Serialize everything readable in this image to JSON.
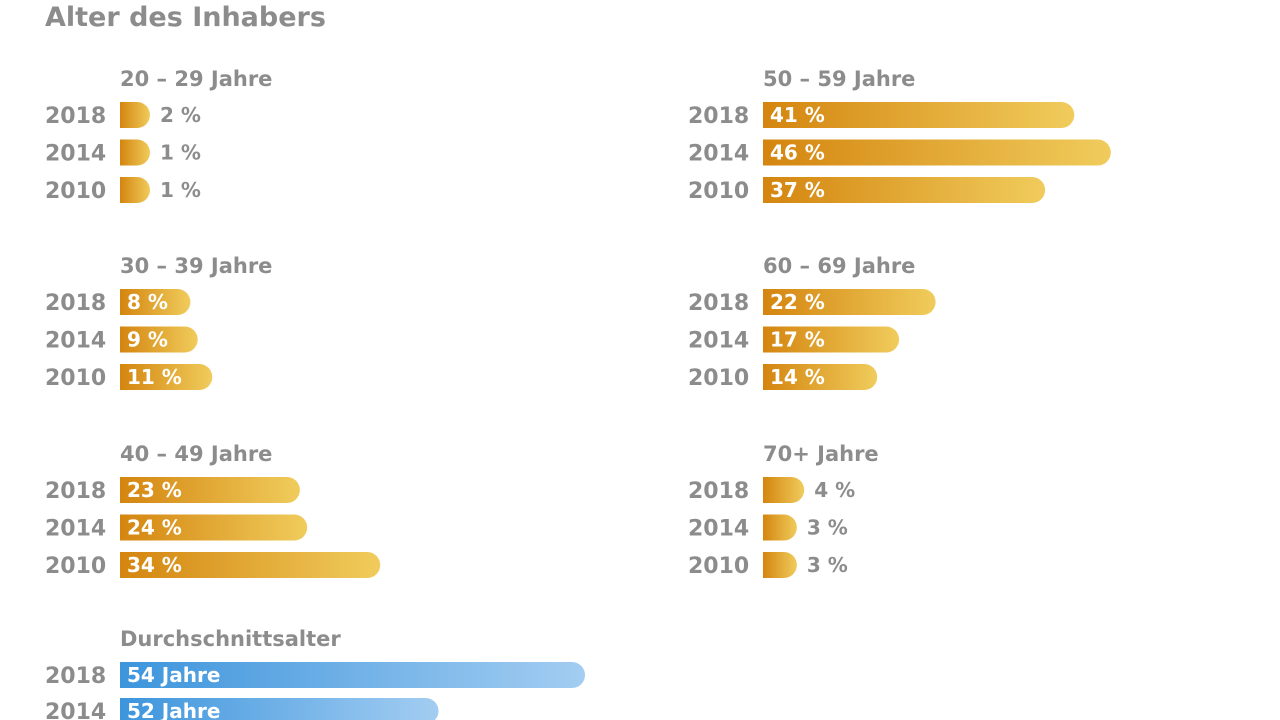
{
  "chart_data": [
    {
      "type": "bar",
      "orientation": "horizontal",
      "title": "Alter des Inhabers",
      "value_unit": "%",
      "groups": [
        {
          "label": "20 – 29 Jahre",
          "rows": [
            {
              "year": "2018",
              "value": 2,
              "label": "2 %"
            },
            {
              "year": "2014",
              "value": 1,
              "label": "1 %"
            },
            {
              "year": "2010",
              "value": 1,
              "label": "1 %"
            }
          ]
        },
        {
          "label": "30 – 39 Jahre",
          "rows": [
            {
              "year": "2018",
              "value": 8,
              "label": "8 %"
            },
            {
              "year": "2014",
              "value": 9,
              "label": "9 %"
            },
            {
              "year": "2010",
              "value": 11,
              "label": "11 %"
            }
          ]
        },
        {
          "label": "40 – 49 Jahre",
          "rows": [
            {
              "year": "2018",
              "value": 23,
              "label": "23 %"
            },
            {
              "year": "2014",
              "value": 24,
              "label": "24 %"
            },
            {
              "year": "2010",
              "value": 34,
              "label": "34 %"
            }
          ]
        },
        {
          "label": "50 – 59 Jahre",
          "rows": [
            {
              "year": "2018",
              "value": 41,
              "label": "41 %"
            },
            {
              "year": "2014",
              "value": 46,
              "label": "46 %"
            },
            {
              "year": "2010",
              "value": 37,
              "label": "37 %"
            }
          ]
        },
        {
          "label": "60 – 69 Jahre",
          "rows": [
            {
              "year": "2018",
              "value": 22,
              "label": "22 %"
            },
            {
              "year": "2014",
              "value": 17,
              "label": "17 %"
            },
            {
              "year": "2010",
              "value": 14,
              "label": "14 %"
            }
          ]
        },
        {
          "label": "70+ Jahre",
          "rows": [
            {
              "year": "2018",
              "value": 4,
              "label": "4 %"
            },
            {
              "year": "2014",
              "value": 3,
              "label": "3 %"
            },
            {
              "year": "2010",
              "value": 3,
              "label": "3 %"
            }
          ]
        }
      ],
      "colors": {
        "bar_start": "#d4850f",
        "bar_end": "#f0cc5c"
      }
    },
    {
      "type": "bar",
      "orientation": "horizontal",
      "title": "Durchschnittsalter",
      "rows": [
        {
          "year": "2018",
          "value": 54,
          "label": "54 Jahre"
        },
        {
          "year": "2014",
          "value": 52,
          "label": "52 Jahre"
        }
      ],
      "colors": {
        "bar_start": "#3d95dc",
        "bar_end": "#a3cdf2"
      }
    }
  ]
}
